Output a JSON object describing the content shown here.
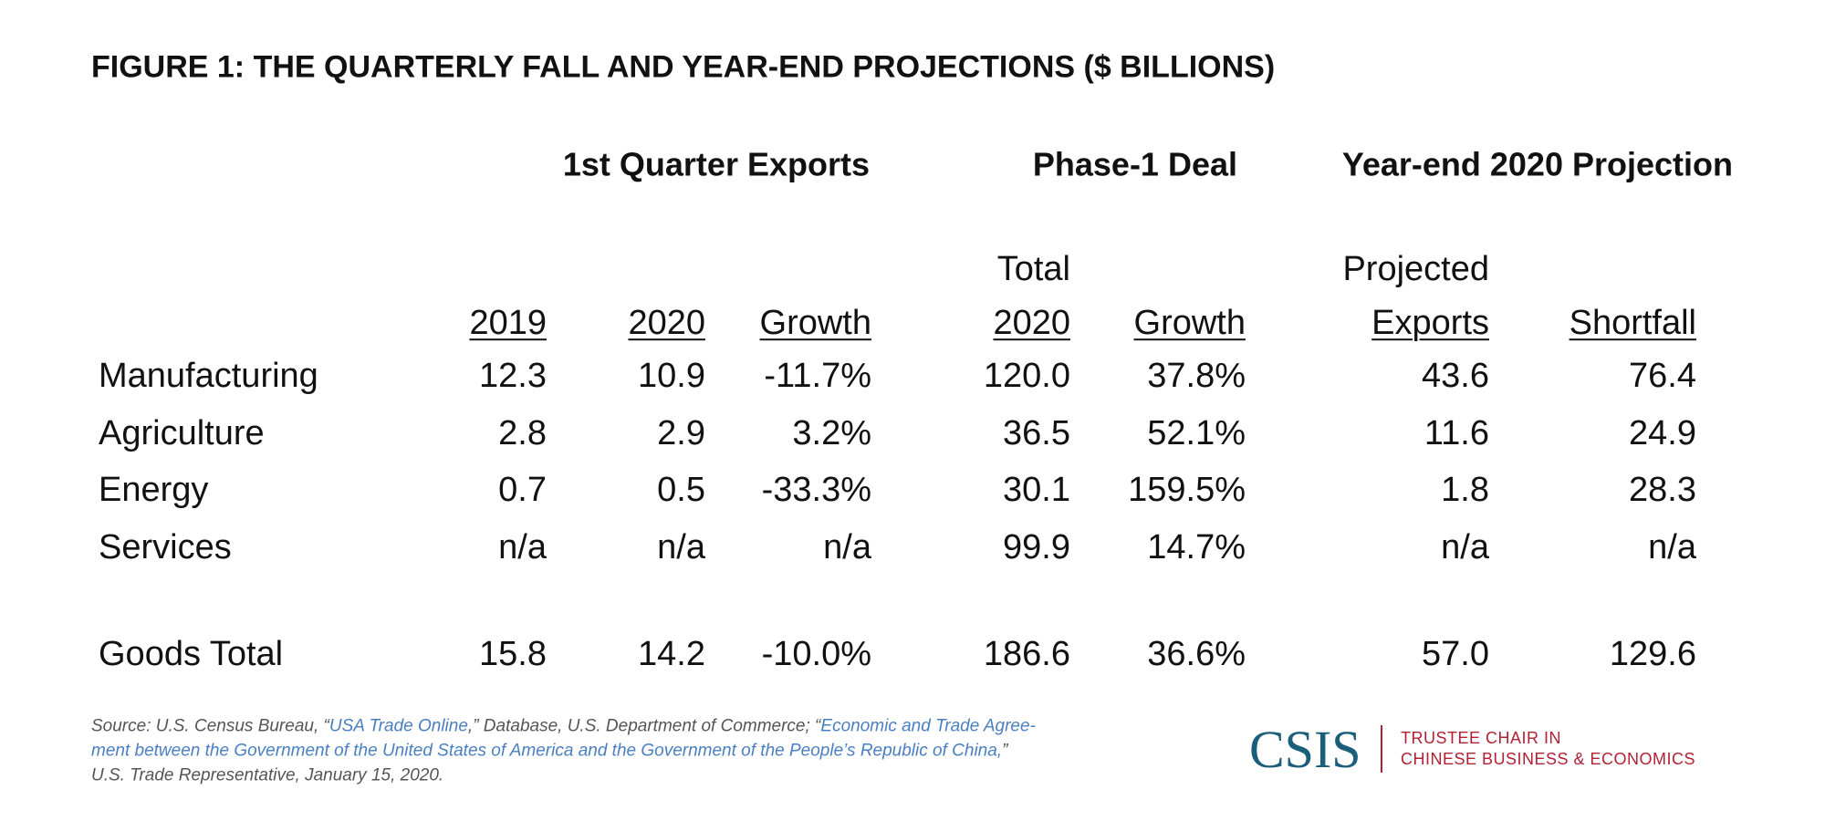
{
  "title": "FIGURE 1: THE QUARTERLY FALL AND YEAR-END PROJECTIONS ($ BILLIONS)",
  "table": {
    "groups": [
      "1st Quarter Exports",
      "Phase-1 Deal",
      "Year-end 2020 Projection"
    ],
    "columns": [
      [
        "2019"
      ],
      [
        "2020"
      ],
      [
        "Growth"
      ],
      [
        "Total",
        "2020"
      ],
      [
        "Growth"
      ],
      [
        "Projected",
        "Exports"
      ],
      [
        "Shortfall"
      ]
    ],
    "rows": [
      [
        "Manufacturing",
        "12.3",
        "10.9",
        "-11.7%",
        "120.0",
        "37.8%",
        "43.6",
        "76.4"
      ],
      [
        "Agriculture",
        "2.8",
        "2.9",
        "3.2%",
        "36.5",
        "52.1%",
        "11.6",
        "24.9"
      ],
      [
        "Energy",
        "0.7",
        "0.5",
        "-33.3%",
        "30.1",
        "159.5%",
        "1.8",
        "28.3"
      ],
      [
        "Services",
        "n/a",
        "n/a",
        "n/a",
        "99.9",
        "14.7%",
        "n/a",
        "n/a"
      ],
      [
        "Goods Total",
        "15.8",
        "14.2",
        "-10.0%",
        "186.6",
        "36.6%",
        "57.0",
        "129.6"
      ]
    ]
  },
  "source": {
    "lines": [
      [
        {
          "text": "Source: U.S. Census Bureau, “"
        },
        {
          "text": "USA Trade Online",
          "link": true
        },
        {
          "text": ",” Database, U.S. Department of Commerce; “"
        },
        {
          "text": "Economic and Trade Agree-",
          "link": true
        }
      ],
      [
        {
          "text": "ment between the Government of the United States of America and the Government of the People’s Republic of China,",
          "link": true
        },
        {
          "text": "”"
        }
      ],
      [
        {
          "text": "U.S. Trade Representative, January 15, 2020."
        }
      ]
    ]
  },
  "logo": {
    "name": "CSIS",
    "lines": [
      "TRUSTEE CHAIR IN",
      "CHINESE BUSINESS & ECONOMICS"
    ]
  }
}
